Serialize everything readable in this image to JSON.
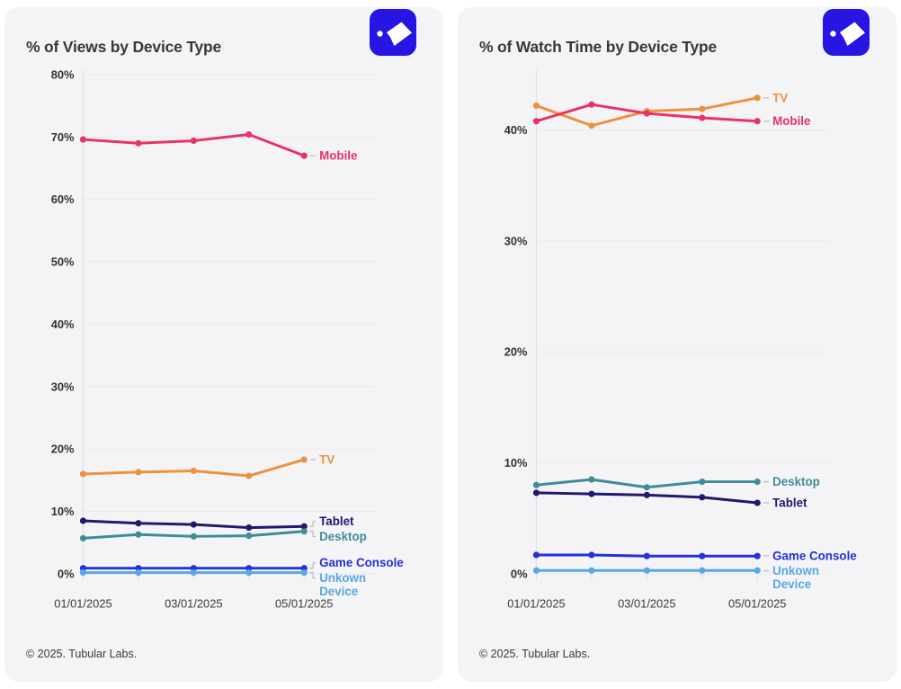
{
  "theme": {
    "page_background": "#ffffff",
    "card_background": "#f4f4f6",
    "logo_background": "#2715e3",
    "logo_glyph_color": "#ffffff",
    "gridline_color": "#e9e9ed",
    "axis_color": "#e0e0e4",
    "connector_color": "#b9b9bf"
  },
  "logo": {
    "name": "Tubular Labs"
  },
  "cards": [
    {
      "title": "% of Views by Device Type",
      "footer": "© 2025. Tubular Labs."
    },
    {
      "title": "% of Watch Time by Device Type",
      "footer": "© 2025. Tubular Labs."
    }
  ],
  "chart_data": [
    {
      "type": "line",
      "title": "% of Views by Device Type",
      "x": [
        "01/01/2025",
        "02/01/2025",
        "03/01/2025",
        "04/01/2025",
        "05/01/2025"
      ],
      "xtick_indices": [
        0,
        2,
        4
      ],
      "xtick_labels_shown": [
        "01/01/2025",
        "03/01/2025",
        "05/01/2025"
      ],
      "ylim": [
        0,
        80
      ],
      "yticks": [
        0,
        10,
        20,
        30,
        40,
        50,
        60,
        70,
        80
      ],
      "ytick_format": "percent",
      "grid": true,
      "legend_position": "right-of-line-end",
      "series": [
        {
          "name": "Mobile",
          "color": "#e93266",
          "values": [
            69.6,
            69.0,
            69.4,
            70.4,
            67.0
          ]
        },
        {
          "name": "TV",
          "color": "#ef9040",
          "values": [
            16.0,
            16.3,
            16.5,
            15.7,
            18.3
          ]
        },
        {
          "name": "Tablet",
          "color": "#1f1970",
          "values": [
            8.5,
            8.1,
            7.9,
            7.4,
            7.6
          ]
        },
        {
          "name": "Desktop",
          "color": "#3f8c99",
          "values": [
            5.7,
            6.3,
            6.0,
            6.1,
            6.8
          ]
        },
        {
          "name": "Game Console",
          "color": "#2531d9",
          "values": [
            0.9,
            0.9,
            0.9,
            0.9,
            0.9
          ]
        },
        {
          "name": "Unkown Device",
          "color": "#57a8e3",
          "values": [
            0.2,
            0.2,
            0.2,
            0.2,
            0.2
          ],
          "wrap_label": true
        }
      ]
    },
    {
      "type": "line",
      "title": "% of Watch Time by Device Type",
      "x": [
        "01/01/2025",
        "02/01/2025",
        "03/01/2025",
        "04/01/2025",
        "05/01/2025"
      ],
      "xtick_indices": [
        0,
        2,
        4
      ],
      "xtick_labels_shown": [
        "01/01/2025",
        "03/01/2025",
        "05/01/2025"
      ],
      "ylim": [
        0,
        45
      ],
      "yticks": [
        0,
        10,
        20,
        30,
        40
      ],
      "ytick_format": "percent",
      "grid": true,
      "legend_position": "right-of-line-end",
      "series": [
        {
          "name": "TV",
          "color": "#ef9040",
          "values": [
            42.2,
            40.4,
            41.7,
            41.9,
            42.9
          ]
        },
        {
          "name": "Mobile",
          "color": "#e93266",
          "values": [
            40.8,
            42.3,
            41.5,
            41.1,
            40.8
          ]
        },
        {
          "name": "Desktop",
          "color": "#3f8c99",
          "values": [
            8.0,
            8.5,
            7.8,
            8.3,
            8.3
          ]
        },
        {
          "name": "Tablet",
          "color": "#1f1970",
          "values": [
            7.3,
            7.2,
            7.1,
            6.9,
            6.4
          ]
        },
        {
          "name": "Game Console",
          "color": "#2531d9",
          "values": [
            1.7,
            1.7,
            1.6,
            1.6,
            1.6
          ]
        },
        {
          "name": "Unkown Device",
          "color": "#57a8e3",
          "values": [
            0.3,
            0.3,
            0.3,
            0.3,
            0.3
          ],
          "wrap_label": true
        }
      ]
    }
  ]
}
